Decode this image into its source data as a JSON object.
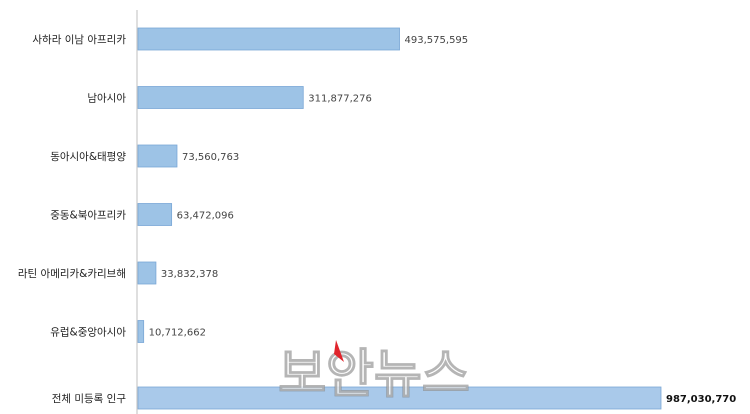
{
  "chart_data": {
    "type": "bar",
    "orientation": "horizontal",
    "categories": [
      "사하라 이남 아프리카",
      "남아시아",
      "동아시아&태평양",
      "중동&북아프리카",
      "라틴 아메리카&카리브해",
      "유럽&중앙아시아",
      "전체 미등록 인구"
    ],
    "values": [
      493575595,
      311877276,
      73560763,
      63472096,
      33832378,
      10712662,
      987030770
    ],
    "value_labels": [
      "493,575,595",
      "311,877,276",
      "73,560,763",
      "63,472,096",
      "33,832,378",
      "10,712,662",
      "987,030,770"
    ],
    "title": "",
    "xlabel": "",
    "ylabel": "",
    "xlim": [
      0,
      987030770
    ],
    "grid": false,
    "legend": "none",
    "colors": {
      "bar_fill": "#9dc3e6",
      "bar_stroke": "#7aa7d6",
      "total_fill": "#a9c9ea",
      "axis": "#bfbfbf"
    }
  },
  "watermark": {
    "text": "보안뉴스",
    "accent": "#e0242c"
  }
}
